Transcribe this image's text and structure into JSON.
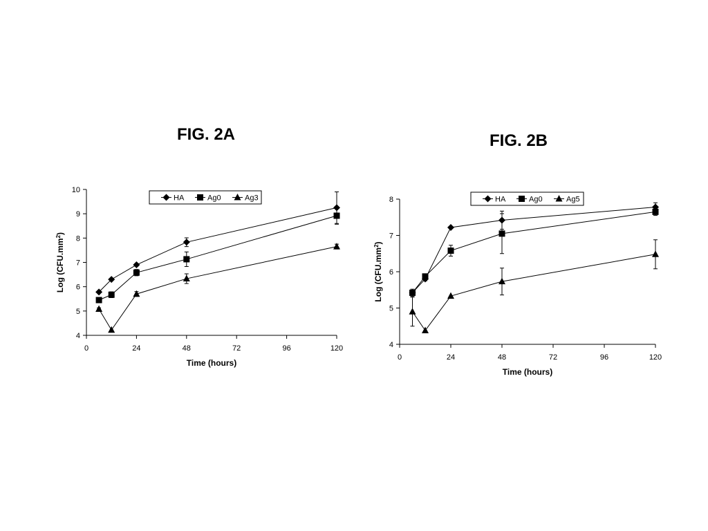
{
  "figures": [
    {
      "title": "FIG. 2A"
    },
    {
      "title": "FIG. 2B"
    }
  ],
  "colors": {
    "ink": "#000000",
    "background": "#ffffff"
  },
  "chart_data": [
    {
      "type": "line",
      "title": "FIG. 2A",
      "xlabel": "Time (hours)",
      "ylabel_main": "Log (CFU.mm",
      "ylabel_sup": "2",
      "ylabel_end": ")",
      "xlim": [
        0,
        120
      ],
      "ylim": [
        4,
        10
      ],
      "xticks": [
        "0",
        "24",
        "48",
        "72",
        "96",
        "120"
      ],
      "yticks": [
        "4",
        "5",
        "6",
        "7",
        "8",
        "9",
        "10"
      ],
      "grid": false,
      "legend_position": "top",
      "series": [
        {
          "name": "HA",
          "marker": "diamond",
          "x": [
            6,
            12,
            24,
            48,
            120
          ],
          "y": [
            5.78,
            6.3,
            6.9,
            7.83,
            9.25
          ],
          "err": [
            0,
            0,
            0.05,
            0.18,
            0.65
          ]
        },
        {
          "name": "Ag0",
          "marker": "square",
          "x": [
            6,
            12,
            24,
            48,
            120
          ],
          "y": [
            5.45,
            5.67,
            6.58,
            7.13,
            8.92
          ],
          "err": [
            0.05,
            0.12,
            0.13,
            0.3,
            0.35
          ]
        },
        {
          "name": "Ag3",
          "marker": "triangle",
          "x": [
            6,
            12,
            24,
            48,
            120
          ],
          "y": [
            5.08,
            4.22,
            5.7,
            6.33,
            7.65
          ],
          "err": [
            0.05,
            0,
            0.1,
            0.2,
            0.1
          ]
        }
      ]
    },
    {
      "type": "line",
      "title": "FIG. 2B",
      "xlabel": "Time (hours)",
      "ylabel_main": "Log (CFU.mm",
      "ylabel_sup": "2",
      "ylabel_end": ")",
      "xlim": [
        0,
        120
      ],
      "ylim": [
        4,
        8
      ],
      "xticks": [
        "0",
        "24",
        "48",
        "72",
        "96",
        "120"
      ],
      "yticks": [
        "4",
        "5",
        "6",
        "7",
        "8"
      ],
      "grid": false,
      "legend_position": "top",
      "series": [
        {
          "name": "HA",
          "marker": "diamond",
          "x": [
            6,
            12,
            24,
            48,
            120
          ],
          "y": [
            5.42,
            5.8,
            7.22,
            7.42,
            7.78
          ],
          "err": [
            0.05,
            0.05,
            0,
            0.25,
            0.12
          ]
        },
        {
          "name": "Ag0",
          "marker": "square",
          "x": [
            6,
            12,
            24,
            48,
            120
          ],
          "y": [
            5.42,
            5.87,
            6.58,
            7.05,
            7.65
          ],
          "err": [
            0.1,
            0.05,
            0.15,
            0.55,
            0.1
          ]
        },
        {
          "name": "Ag5",
          "marker": "triangle",
          "x": [
            6,
            12,
            24,
            48,
            120
          ],
          "y": [
            4.9,
            4.38,
            5.33,
            5.73,
            6.48
          ],
          "err": [
            0.4,
            0,
            0,
            0.37,
            0.4
          ]
        }
      ]
    }
  ]
}
